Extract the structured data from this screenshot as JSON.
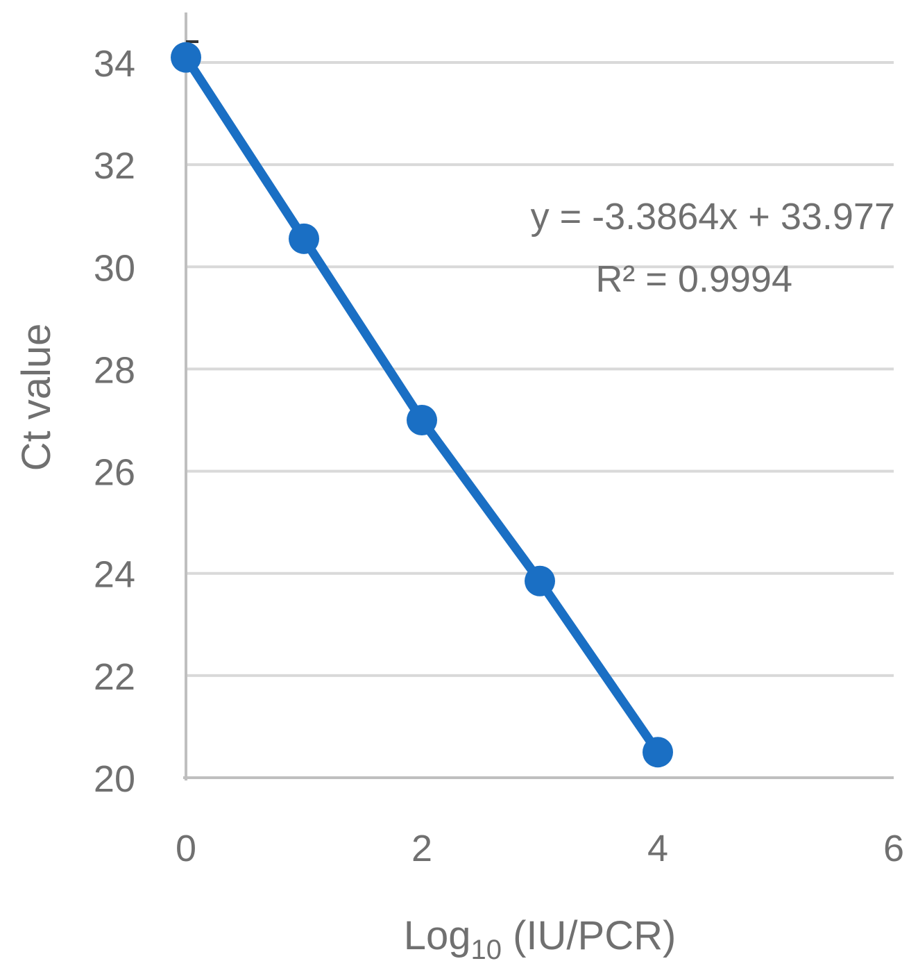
{
  "chart_data": {
    "type": "scatter",
    "x_label_main": "Log",
    "x_label_sub": "10",
    "x_label_rest": " (IU/PCR)",
    "ylabel": "Ct value",
    "xlim": [
      0,
      6
    ],
    "ylim": [
      20,
      34
    ],
    "x_ticks": [
      "0",
      "2",
      "4",
      "6"
    ],
    "y_ticks": [
      "20",
      "22",
      "24",
      "26",
      "28",
      "30",
      "32",
      "34"
    ],
    "grid": "horizontal",
    "series": [
      {
        "x": [
          0,
          1,
          2,
          3,
          4
        ],
        "y": [
          34.1,
          30.55,
          27.0,
          23.85,
          20.5
        ]
      }
    ],
    "trendline": {
      "slope": -3.3864,
      "intercept": 33.977
    },
    "equation": "y = -3.3864x + 33.977",
    "r2_label": "R² = 0.9994",
    "colors": {
      "series": "#1a6fc4",
      "grid": "#d9d9d9",
      "axis": "#bfbfbf",
      "text": "#707070"
    }
  }
}
